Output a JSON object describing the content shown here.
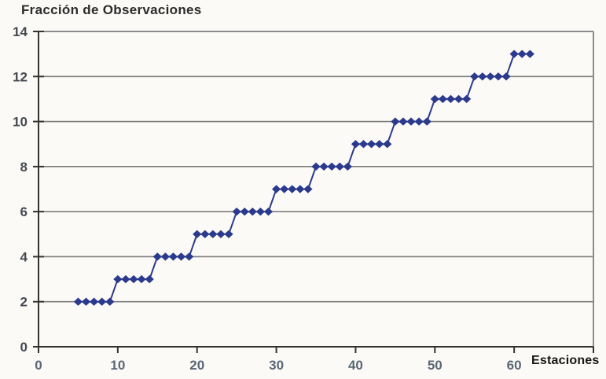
{
  "chart_data": {
    "type": "line",
    "title": "Fracción de Observaciones",
    "xlabel": "Estaciones",
    "ylabel": "",
    "xlim": [
      0,
      70
    ],
    "ylim": [
      0,
      14
    ],
    "x_ticks": [
      0,
      10,
      20,
      30,
      40,
      50,
      60
    ],
    "y_ticks": [
      0,
      2,
      4,
      6,
      8,
      10,
      12,
      14
    ],
    "grid": "horizontal",
    "legend": "none",
    "marker": "diamond",
    "series": [
      {
        "name": "Fracción de Observaciones",
        "points": [
          [
            5,
            2
          ],
          [
            6,
            2
          ],
          [
            7,
            2
          ],
          [
            8,
            2
          ],
          [
            9,
            2
          ],
          [
            10,
            3
          ],
          [
            11,
            3
          ],
          [
            12,
            3
          ],
          [
            13,
            3
          ],
          [
            14,
            3
          ],
          [
            15,
            4
          ],
          [
            16,
            4
          ],
          [
            17,
            4
          ],
          [
            18,
            4
          ],
          [
            19,
            4
          ],
          [
            20,
            5
          ],
          [
            21,
            5
          ],
          [
            22,
            5
          ],
          [
            23,
            5
          ],
          [
            24,
            5
          ],
          [
            25,
            6
          ],
          [
            26,
            6
          ],
          [
            27,
            6
          ],
          [
            28,
            6
          ],
          [
            29,
            6
          ],
          [
            30,
            7
          ],
          [
            31,
            7
          ],
          [
            32,
            7
          ],
          [
            33,
            7
          ],
          [
            34,
            7
          ],
          [
            35,
            8
          ],
          [
            36,
            8
          ],
          [
            37,
            8
          ],
          [
            38,
            8
          ],
          [
            39,
            8
          ],
          [
            40,
            9
          ],
          [
            41,
            9
          ],
          [
            42,
            9
          ],
          [
            43,
            9
          ],
          [
            44,
            9
          ],
          [
            45,
            10
          ],
          [
            46,
            10
          ],
          [
            47,
            10
          ],
          [
            48,
            10
          ],
          [
            49,
            10
          ],
          [
            50,
            11
          ],
          [
            51,
            11
          ],
          [
            52,
            11
          ],
          [
            53,
            11
          ],
          [
            54,
            11
          ],
          [
            55,
            12
          ],
          [
            56,
            12
          ],
          [
            57,
            12
          ],
          [
            58,
            12
          ],
          [
            59,
            12
          ],
          [
            60,
            13
          ],
          [
            61,
            13
          ],
          [
            62,
            13
          ]
        ]
      }
    ],
    "colors": {
      "series": "#2b3a8c",
      "grid": "#7d7d7d",
      "axis": "#333333",
      "border": "#8c8c8c",
      "x_tick_label": "#5a6775",
      "y_tick_label": "#45494f",
      "title": "#2b2b2b",
      "xlabel": "#161616",
      "background": "#fbfaf7"
    }
  }
}
